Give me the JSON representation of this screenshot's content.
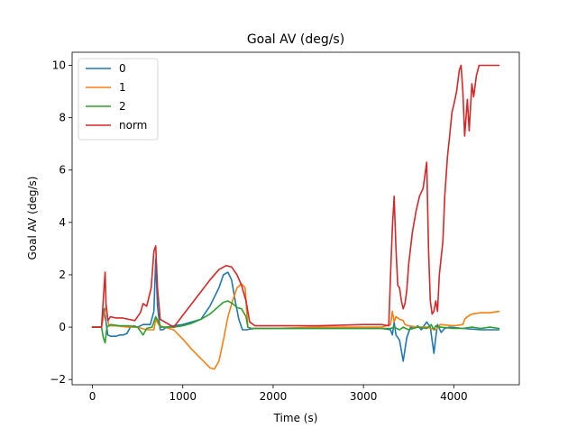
{
  "chart_data": {
    "type": "line",
    "title": "Goal AV (deg/s)",
    "xlabel": "Time (s)",
    "ylabel": "Goal AV (deg/s)",
    "xlim": [
      -225,
      4725
    ],
    "ylim": [
      -2.2,
      10.5
    ],
    "xticks": [
      0,
      1000,
      2000,
      3000,
      4000
    ],
    "yticks": [
      -2,
      0,
      2,
      4,
      6,
      8,
      10
    ],
    "grid": false,
    "legend_position": "upper-left",
    "series": [
      {
        "name": "0",
        "color": "#1f77b4",
        "points": [
          [
            0,
            0
          ],
          [
            100,
            0
          ],
          [
            130,
            0.7
          ],
          [
            150,
            0.2
          ],
          [
            170,
            -0.3
          ],
          [
            200,
            -0.35
          ],
          [
            260,
            -0.35
          ],
          [
            300,
            -0.3
          ],
          [
            340,
            -0.3
          ],
          [
            380,
            -0.25
          ],
          [
            420,
            0
          ],
          [
            460,
            0.05
          ],
          [
            500,
            0
          ],
          [
            560,
            0.1
          ],
          [
            640,
            0.1
          ],
          [
            680,
            0.6
          ],
          [
            700,
            2.6
          ],
          [
            720,
            0.8
          ],
          [
            750,
            -0.1
          ],
          [
            780,
            -0.1
          ],
          [
            820,
            0
          ],
          [
            900,
            0.05
          ],
          [
            1000,
            0.1
          ],
          [
            1100,
            0.2
          ],
          [
            1200,
            0.3
          ],
          [
            1300,
            0.8
          ],
          [
            1400,
            1.5
          ],
          [
            1450,
            2.0
          ],
          [
            1500,
            2.1
          ],
          [
            1540,
            1.8
          ],
          [
            1580,
            1.0
          ],
          [
            1620,
            0.3
          ],
          [
            1660,
            -0.1
          ],
          [
            1700,
            -0.1
          ],
          [
            1800,
            -0.05
          ],
          [
            2000,
            -0.05
          ],
          [
            2500,
            -0.05
          ],
          [
            3000,
            -0.05
          ],
          [
            3200,
            -0.05
          ],
          [
            3300,
            -0.1
          ],
          [
            3320,
            -0.3
          ],
          [
            3340,
            0.2
          ],
          [
            3360,
            -0.3
          ],
          [
            3400,
            -0.5
          ],
          [
            3440,
            -1.3
          ],
          [
            3480,
            -0.4
          ],
          [
            3520,
            0
          ],
          [
            3560,
            -0.05
          ],
          [
            3600,
            0.05
          ],
          [
            3640,
            -0.1
          ],
          [
            3700,
            0.2
          ],
          [
            3740,
            0
          ],
          [
            3780,
            -1.0
          ],
          [
            3800,
            -0.4
          ],
          [
            3820,
            0.1
          ],
          [
            3860,
            -0.2
          ],
          [
            3900,
            -0.05
          ],
          [
            3950,
            0
          ],
          [
            4100,
            -0.05
          ],
          [
            4300,
            -0.1
          ],
          [
            4500,
            -0.1
          ]
        ]
      },
      {
        "name": "1",
        "color": "#ff7f0e",
        "points": [
          [
            0,
            0
          ],
          [
            100,
            0
          ],
          [
            150,
            0.8
          ],
          [
            180,
            0.05
          ],
          [
            250,
            0.05
          ],
          [
            400,
            0
          ],
          [
            500,
            0
          ],
          [
            600,
            -0.1
          ],
          [
            680,
            -0.1
          ],
          [
            700,
            0.3
          ],
          [
            740,
            0.05
          ],
          [
            800,
            0
          ],
          [
            900,
            -0.1
          ],
          [
            1000,
            -0.45
          ],
          [
            1100,
            -0.85
          ],
          [
            1200,
            -1.2
          ],
          [
            1300,
            -1.55
          ],
          [
            1350,
            -1.6
          ],
          [
            1400,
            -1.3
          ],
          [
            1450,
            -0.5
          ],
          [
            1500,
            0.4
          ],
          [
            1550,
            1.0
          ],
          [
            1600,
            1.5
          ],
          [
            1650,
            1.65
          ],
          [
            1690,
            1.5
          ],
          [
            1720,
            0
          ],
          [
            1760,
            -0.05
          ],
          [
            2000,
            -0.05
          ],
          [
            2500,
            0
          ],
          [
            3000,
            0
          ],
          [
            3200,
            0
          ],
          [
            3300,
            0.1
          ],
          [
            3320,
            0.6
          ],
          [
            3340,
            0.2
          ],
          [
            3360,
            0.4
          ],
          [
            3400,
            0.3
          ],
          [
            3440,
            0.25
          ],
          [
            3460,
            0.1
          ],
          [
            3500,
            0.05
          ],
          [
            3600,
            0
          ],
          [
            3700,
            0
          ],
          [
            3800,
            -0.1
          ],
          [
            3850,
            0.1
          ],
          [
            4000,
            0.05
          ],
          [
            4100,
            0.1
          ],
          [
            4120,
            0.3
          ],
          [
            4150,
            0.4
          ],
          [
            4200,
            0.5
          ],
          [
            4300,
            0.55
          ],
          [
            4400,
            0.55
          ],
          [
            4500,
            0.6
          ]
        ]
      },
      {
        "name": "2",
        "color": "#2ca02c",
        "points": [
          [
            0,
            0
          ],
          [
            100,
            0
          ],
          [
            120,
            -0.4
          ],
          [
            140,
            -0.6
          ],
          [
            160,
            0
          ],
          [
            200,
            0.1
          ],
          [
            300,
            0.05
          ],
          [
            400,
            0.05
          ],
          [
            500,
            0
          ],
          [
            560,
            -0.3
          ],
          [
            600,
            -0.05
          ],
          [
            660,
            0
          ],
          [
            700,
            0.4
          ],
          [
            730,
            0.2
          ],
          [
            760,
            0
          ],
          [
            900,
            0
          ],
          [
            1000,
            0.05
          ],
          [
            1100,
            0.15
          ],
          [
            1200,
            0.3
          ],
          [
            1300,
            0.5
          ],
          [
            1400,
            0.8
          ],
          [
            1450,
            0.95
          ],
          [
            1500,
            1.0
          ],
          [
            1550,
            0.9
          ],
          [
            1600,
            0.75
          ],
          [
            1650,
            0.7
          ],
          [
            1700,
            0.4
          ],
          [
            1720,
            0
          ],
          [
            1760,
            -0.05
          ],
          [
            2000,
            -0.05
          ],
          [
            2500,
            -0.05
          ],
          [
            3000,
            -0.05
          ],
          [
            3200,
            -0.05
          ],
          [
            3300,
            -0.05
          ],
          [
            3340,
            0
          ],
          [
            3400,
            -0.1
          ],
          [
            3440,
            0
          ],
          [
            3500,
            -0.1
          ],
          [
            3600,
            0
          ],
          [
            3700,
            -0.05
          ],
          [
            3750,
            0.1
          ],
          [
            3780,
            -0.1
          ],
          [
            3800,
            0.05
          ],
          [
            3850,
            0
          ],
          [
            4000,
            -0.05
          ],
          [
            4100,
            -0.05
          ],
          [
            4200,
            0
          ],
          [
            4300,
            -0.05
          ],
          [
            4400,
            0
          ],
          [
            4500,
            -0.05
          ]
        ]
      },
      {
        "name": "norm",
        "color": "#d62728",
        "points": [
          [
            0,
            0
          ],
          [
            100,
            0
          ],
          [
            130,
            1.6
          ],
          [
            140,
            2.1
          ],
          [
            150,
            0.9
          ],
          [
            170,
            0.25
          ],
          [
            200,
            0.4
          ],
          [
            260,
            0.35
          ],
          [
            330,
            0.35
          ],
          [
            400,
            0.3
          ],
          [
            470,
            0.25
          ],
          [
            530,
            0.55
          ],
          [
            560,
            0.9
          ],
          [
            600,
            0.8
          ],
          [
            650,
            1.5
          ],
          [
            680,
            2.9
          ],
          [
            700,
            3.1
          ],
          [
            720,
            1.5
          ],
          [
            750,
            0.3
          ],
          [
            800,
            0.2
          ],
          [
            900,
            0
          ],
          [
            1000,
            0.45
          ],
          [
            1100,
            0.9
          ],
          [
            1200,
            1.35
          ],
          [
            1300,
            1.8
          ],
          [
            1400,
            2.2
          ],
          [
            1480,
            2.35
          ],
          [
            1540,
            2.3
          ],
          [
            1600,
            2.0
          ],
          [
            1650,
            1.6
          ],
          [
            1700,
            1.0
          ],
          [
            1740,
            0.2
          ],
          [
            1800,
            0.05
          ],
          [
            2000,
            0.05
          ],
          [
            2500,
            0.05
          ],
          [
            3000,
            0.1
          ],
          [
            3200,
            0.1
          ],
          [
            3280,
            0.05
          ],
          [
            3300,
            2.0
          ],
          [
            3320,
            3.8
          ],
          [
            3340,
            5.0
          ],
          [
            3360,
            3.0
          ],
          [
            3380,
            1.6
          ],
          [
            3400,
            1.5
          ],
          [
            3420,
            1.0
          ],
          [
            3440,
            0.7
          ],
          [
            3460,
            0.9
          ],
          [
            3480,
            1.4
          ],
          [
            3500,
            2.4
          ],
          [
            3540,
            3.6
          ],
          [
            3580,
            4.4
          ],
          [
            3620,
            5.0
          ],
          [
            3660,
            5.3
          ],
          [
            3680,
            5.8
          ],
          [
            3700,
            6.3
          ],
          [
            3720,
            3.0
          ],
          [
            3740,
            1.0
          ],
          [
            3760,
            0.5
          ],
          [
            3780,
            0.6
          ],
          [
            3800,
            1.0
          ],
          [
            3820,
            0.6
          ],
          [
            3840,
            2.0
          ],
          [
            3880,
            3.3
          ],
          [
            3900,
            5.0
          ],
          [
            3930,
            6.5
          ],
          [
            3960,
            7.5
          ],
          [
            3980,
            8.2
          ],
          [
            4000,
            8.5
          ],
          [
            4030,
            9.0
          ],
          [
            4060,
            9.8
          ],
          [
            4080,
            10
          ],
          [
            4100,
            9.0
          ],
          [
            4120,
            7.3
          ],
          [
            4150,
            8.7
          ],
          [
            4170,
            7.5
          ],
          [
            4200,
            9.3
          ],
          [
            4220,
            8.8
          ],
          [
            4250,
            9.6
          ],
          [
            4280,
            10
          ],
          [
            4300,
            10
          ],
          [
            4500,
            10
          ]
        ]
      }
    ]
  }
}
